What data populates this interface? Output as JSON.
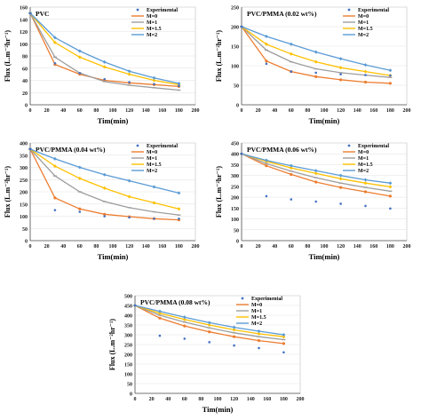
{
  "chart_data": [
    {
      "type": "line",
      "title": "PVC",
      "xlabel": "Tim(min)",
      "ylabel": "Flux (L.m⁻²hr⁻¹)",
      "xlim": [
        0,
        200
      ],
      "ylim": [
        0,
        160
      ],
      "xticks": [
        "0",
        "20",
        "40",
        "60",
        "80",
        "100",
        "120",
        "140",
        "160",
        "180",
        "200"
      ],
      "yticks": [
        "0",
        "20",
        "40",
        "60",
        "80",
        "100",
        "120",
        "140",
        "160"
      ],
      "legend_position": "top-right",
      "colors": {
        "experimental": "#4472c4",
        "M0": "#ed7d31",
        "M1": "#9e9e9e",
        "M15": "#ffc000",
        "M2": "#5b9bd5"
      },
      "experimental": {
        "name": "Experimental",
        "x": [
          0,
          30,
          60,
          90,
          120,
          150,
          180
        ],
        "y": [
          150,
          68,
          52,
          42,
          37,
          34,
          31
        ]
      },
      "series": [
        {
          "name": "M=0",
          "x": [
            0,
            30,
            60,
            90,
            120,
            150,
            180
          ],
          "y": [
            150,
            66,
            50,
            40,
            36,
            33,
            30
          ]
        },
        {
          "name": "M=1",
          "x": [
            0,
            30,
            60,
            90,
            120,
            150,
            180
          ],
          "y": [
            150,
            78,
            52,
            38,
            32,
            28,
            24
          ]
        },
        {
          "name": "M=1.5",
          "x": [
            0,
            30,
            60,
            90,
            120,
            150,
            180
          ],
          "y": [
            150,
            102,
            78,
            62,
            50,
            40,
            33
          ]
        },
        {
          "name": "M=2",
          "x": [
            0,
            30,
            60,
            90,
            120,
            150,
            180
          ],
          "y": [
            150,
            110,
            88,
            70,
            55,
            44,
            35
          ]
        }
      ]
    },
    {
      "type": "line",
      "title": "PVC/PMMA (0.02 wt%)",
      "xlabel": "Tim(min)",
      "ylabel": "Flux (L.m⁻²hr⁻¹)",
      "xlim": [
        0,
        200
      ],
      "ylim": [
        0,
        250
      ],
      "xticks": [
        "0",
        "20",
        "40",
        "60",
        "80",
        "100",
        "120",
        "140",
        "160",
        "180",
        "200"
      ],
      "yticks": [
        "0",
        "50",
        "100",
        "150",
        "200",
        "250"
      ],
      "legend_position": "top-right",
      "colors": {
        "experimental": "#4472c4",
        "M0": "#ed7d31",
        "M1": "#9e9e9e",
        "M15": "#ffc000",
        "M2": "#5b9bd5"
      },
      "experimental": {
        "name": "Experimental",
        "x": [
          0,
          30,
          60,
          90,
          120,
          150,
          180
        ],
        "y": [
          200,
          105,
          85,
          82,
          78,
          76,
          75
        ]
      },
      "series": [
        {
          "name": "M=0",
          "x": [
            0,
            30,
            60,
            90,
            120,
            150,
            180
          ],
          "y": [
            200,
            112,
            85,
            72,
            64,
            58,
            55
          ]
        },
        {
          "name": "M=1",
          "x": [
            0,
            30,
            60,
            90,
            120,
            150,
            180
          ],
          "y": [
            200,
            140,
            110,
            92,
            82,
            76,
            70
          ]
        },
        {
          "name": "M=1.5",
          "x": [
            0,
            30,
            60,
            90,
            120,
            150,
            180
          ],
          "y": [
            200,
            155,
            130,
            110,
            95,
            85,
            75
          ]
        },
        {
          "name": "M=2",
          "x": [
            0,
            30,
            60,
            90,
            120,
            150,
            180
          ],
          "y": [
            200,
            175,
            155,
            135,
            118,
            102,
            88
          ]
        }
      ]
    },
    {
      "type": "line",
      "title": "PVC/PMMA (0.04 wt%)",
      "xlabel": "Tim(min)",
      "ylabel": "Flux (L.m⁻²hr⁻¹)",
      "xlim": [
        0,
        200
      ],
      "ylim": [
        0,
        400
      ],
      "xticks": [
        "0",
        "20",
        "40",
        "60",
        "80",
        "100",
        "120",
        "140",
        "160",
        "180",
        "200"
      ],
      "yticks": [
        "0",
        "50",
        "100",
        "150",
        "200",
        "250",
        "300",
        "350",
        "400"
      ],
      "legend_position": "top-right",
      "colors": {
        "experimental": "#4472c4",
        "M0": "#ed7d31",
        "M1": "#9e9e9e",
        "M15": "#ffc000",
        "M2": "#5b9bd5"
      },
      "experimental": {
        "name": "Experimental",
        "x": [
          0,
          30,
          60,
          90,
          120,
          150,
          180
        ],
        "y": [
          375,
          125,
          118,
          100,
          95,
          90,
          90
        ]
      },
      "series": [
        {
          "name": "M=0",
          "x": [
            0,
            30,
            60,
            90,
            120,
            150,
            180
          ],
          "y": [
            375,
            175,
            130,
            108,
            98,
            90,
            85
          ]
        },
        {
          "name": "M=1",
          "x": [
            0,
            30,
            60,
            90,
            120,
            150,
            180
          ],
          "y": [
            375,
            265,
            200,
            160,
            135,
            118,
            105
          ]
        },
        {
          "name": "M=1.5",
          "x": [
            0,
            30,
            60,
            90,
            120,
            150,
            180
          ],
          "y": [
            375,
            305,
            255,
            215,
            180,
            155,
            130
          ]
        },
        {
          "name": "M=2",
          "x": [
            0,
            30,
            60,
            90,
            120,
            150,
            180
          ],
          "y": [
            375,
            335,
            300,
            270,
            245,
            220,
            195
          ]
        }
      ]
    },
    {
      "type": "line",
      "title": "PVC/PMMA (0.06 wt%)",
      "xlabel": "Tim(min)",
      "ylabel": "Flux (L.m⁻²hr⁻¹)",
      "xlim": [
        0,
        200
      ],
      "ylim": [
        0,
        450
      ],
      "xticks": [
        "0",
        "20",
        "40",
        "60",
        "80",
        "100",
        "120",
        "140",
        "160",
        "180",
        "200"
      ],
      "yticks": [
        "0",
        "50",
        "100",
        "150",
        "200",
        "250",
        "300",
        "350",
        "400",
        "450"
      ],
      "legend_position": "top-right",
      "colors": {
        "experimental": "#4472c4",
        "M0": "#ed7d31",
        "M1": "#9e9e9e",
        "M15": "#ffc000",
        "M2": "#5b9bd5"
      },
      "experimental": {
        "name": "Experimental",
        "x": [
          0,
          30,
          60,
          90,
          120,
          150,
          180
        ],
        "y": [
          400,
          205,
          190,
          180,
          170,
          160,
          148
        ]
      },
      "series": [
        {
          "name": "M=0",
          "x": [
            0,
            30,
            60,
            90,
            120,
            150,
            180
          ],
          "y": [
            400,
            345,
            305,
            270,
            245,
            225,
            205
          ]
        },
        {
          "name": "M=1",
          "x": [
            0,
            30,
            60,
            90,
            120,
            150,
            180
          ],
          "y": [
            400,
            355,
            320,
            290,
            265,
            245,
            228
          ]
        },
        {
          "name": "M=1.5",
          "x": [
            0,
            30,
            60,
            90,
            120,
            150,
            180
          ],
          "y": [
            400,
            365,
            335,
            310,
            285,
            265,
            248
          ]
        },
        {
          "name": "M=2",
          "x": [
            0,
            30,
            60,
            90,
            120,
            150,
            180
          ],
          "y": [
            400,
            370,
            345,
            322,
            300,
            280,
            265
          ]
        }
      ]
    },
    {
      "type": "line",
      "title": "PVC/PMMA (0.08 wt%)",
      "xlabel": "Tim(min)",
      "ylabel": "Flux (L.m⁻²hr⁻¹)",
      "xlim": [
        0,
        200
      ],
      "ylim": [
        0,
        500
      ],
      "xticks": [
        "0",
        "20",
        "40",
        "60",
        "80",
        "100",
        "120",
        "140",
        "160",
        "180",
        "200"
      ],
      "yticks": [
        "0",
        "50",
        "100",
        "150",
        "200",
        "250",
        "300",
        "350",
        "400",
        "450",
        "500"
      ],
      "legend_position": "top-right",
      "colors": {
        "experimental": "#4472c4",
        "M0": "#ed7d31",
        "M1": "#9e9e9e",
        "M15": "#ffc000",
        "M2": "#5b9bd5"
      },
      "experimental": {
        "name": "Experimental",
        "x": [
          0,
          30,
          60,
          90,
          120,
          150,
          180
        ],
        "y": [
          450,
          295,
          280,
          262,
          245,
          232,
          210
        ]
      },
      "series": [
        {
          "name": "M=0",
          "x": [
            0,
            30,
            60,
            90,
            120,
            150,
            180
          ],
          "y": [
            450,
            385,
            345,
            315,
            290,
            270,
            255
          ]
        },
        {
          "name": "M=1",
          "x": [
            0,
            30,
            60,
            90,
            120,
            150,
            180
          ],
          "y": [
            450,
            400,
            365,
            335,
            310,
            290,
            275
          ]
        },
        {
          "name": "M=1.5",
          "x": [
            0,
            30,
            60,
            90,
            120,
            150,
            180
          ],
          "y": [
            450,
            410,
            378,
            350,
            325,
            305,
            290
          ]
        },
        {
          "name": "M=2",
          "x": [
            0,
            30,
            60,
            90,
            120,
            150,
            180
          ],
          "y": [
            450,
            420,
            390,
            362,
            338,
            318,
            300
          ]
        }
      ]
    }
  ]
}
